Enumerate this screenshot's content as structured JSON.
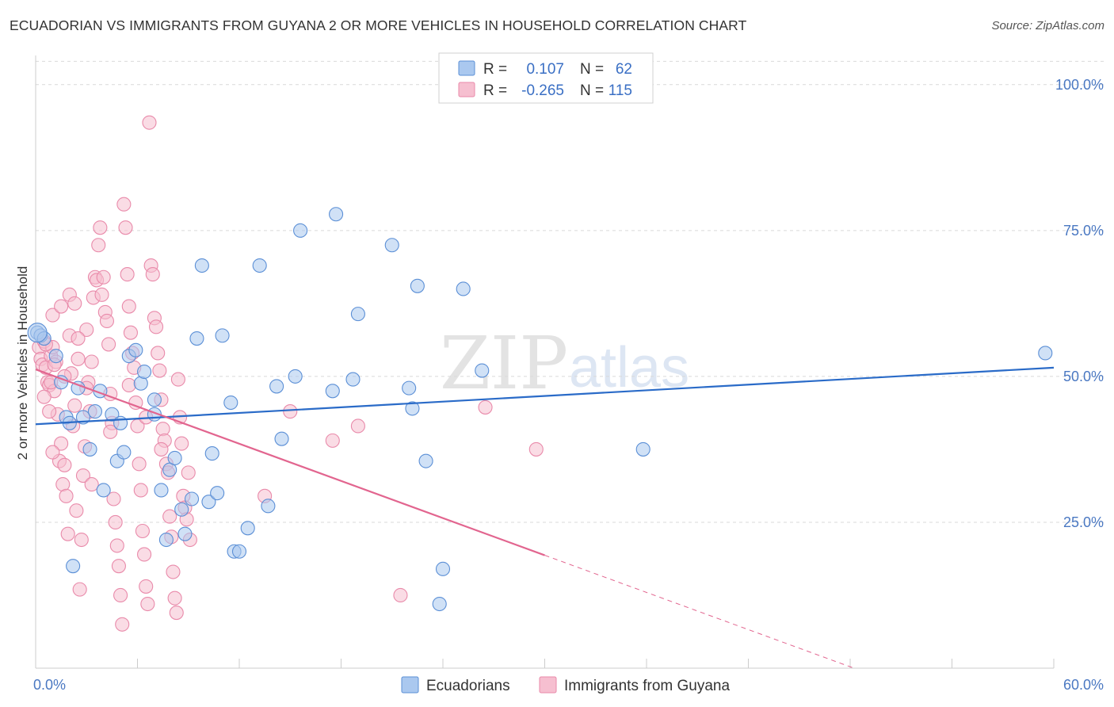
{
  "title": "ECUADORIAN VS IMMIGRANTS FROM GUYANA 2 OR MORE VEHICLES IN HOUSEHOLD CORRELATION CHART",
  "source": "Source: ZipAtlas.com",
  "watermark": {
    "zip": "ZIP",
    "atlas": "atlas"
  },
  "colors": {
    "blue_fill": "#aac8ef",
    "blue_stroke": "#5b8fd6",
    "blue_line": "#2a6bc8",
    "pink_fill": "#f6bfd0",
    "pink_stroke": "#e98aaa",
    "pink_line": "#e2658f",
    "grid": "#d9d9d9",
    "tick_text": "#4a78c2"
  },
  "legend": {
    "rows": [
      {
        "r_label": "R =",
        "r_value": "0.107",
        "n_label": "N =",
        "n_value": "62"
      },
      {
        "r_label": "R =",
        "r_value": "-0.265",
        "n_label": "N =",
        "n_value": "115"
      }
    ]
  },
  "chart_data": {
    "type": "scatter",
    "title": "ECUADORIAN VS IMMIGRANTS FROM GUYANA 2 OR MORE VEHICLES IN HOUSEHOLD CORRELATION CHART",
    "xlabel": "",
    "ylabel": "2 or more Vehicles in Household",
    "xlim": [
      0,
      60
    ],
    "ylim": [
      0,
      105
    ],
    "x_tick_labels": [
      "0.0%",
      "60.0%"
    ],
    "y_ticks": [
      25,
      50,
      75,
      100
    ],
    "y_tick_labels": [
      "25.0%",
      "50.0%",
      "75.0%",
      "100.0%"
    ],
    "grid": true,
    "legend_position": "top-center",
    "series": [
      {
        "name": "Ecuadorians",
        "color": "#aac8ef",
        "trend": {
          "x": [
            0,
            60
          ],
          "y": [
            41.8,
            51.5
          ],
          "dashed_from": null
        },
        "points": [
          [
            0.1,
            57.5
          ],
          [
            0.3,
            57.0
          ],
          [
            0.5,
            56.5
          ],
          [
            1.2,
            53.5
          ],
          [
            1.5,
            49.0
          ],
          [
            1.8,
            43.0
          ],
          [
            2.0,
            42.0
          ],
          [
            2.2,
            17.5
          ],
          [
            2.5,
            48.0
          ],
          [
            2.8,
            43.0
          ],
          [
            3.2,
            37.5
          ],
          [
            3.5,
            44.0
          ],
          [
            3.8,
            47.5
          ],
          [
            4.0,
            30.5
          ],
          [
            4.5,
            43.5
          ],
          [
            4.8,
            35.5
          ],
          [
            5.0,
            42.0
          ],
          [
            5.2,
            37.0
          ],
          [
            5.5,
            53.5
          ],
          [
            5.9,
            54.5
          ],
          [
            6.2,
            48.8
          ],
          [
            6.4,
            50.8
          ],
          [
            7.0,
            46.0
          ],
          [
            7.0,
            43.5
          ],
          [
            7.4,
            30.5
          ],
          [
            7.7,
            22.0
          ],
          [
            7.9,
            34.0
          ],
          [
            8.2,
            36.0
          ],
          [
            8.6,
            27.2
          ],
          [
            8.8,
            23.0
          ],
          [
            9.2,
            29.0
          ],
          [
            9.5,
            56.5
          ],
          [
            9.8,
            69.0
          ],
          [
            10.2,
            28.5
          ],
          [
            10.4,
            36.8
          ],
          [
            10.7,
            30.0
          ],
          [
            11.0,
            57.0
          ],
          [
            11.5,
            45.5
          ],
          [
            11.7,
            20.0
          ],
          [
            12.0,
            20.0
          ],
          [
            12.5,
            24.0
          ],
          [
            13.2,
            69.0
          ],
          [
            13.7,
            27.8
          ],
          [
            14.2,
            48.3
          ],
          [
            14.5,
            39.3
          ],
          [
            15.3,
            50.0
          ],
          [
            15.6,
            75.0
          ],
          [
            17.5,
            47.5
          ],
          [
            17.7,
            77.8
          ],
          [
            18.7,
            49.5
          ],
          [
            19.0,
            60.7
          ],
          [
            21.0,
            72.5
          ],
          [
            22.0,
            48.0
          ],
          [
            22.2,
            44.5
          ],
          [
            22.5,
            65.5
          ],
          [
            23.0,
            35.5
          ],
          [
            24.0,
            17.0
          ],
          [
            23.8,
            11.0
          ],
          [
            25.2,
            65.0
          ],
          [
            26.3,
            51.0
          ],
          [
            35.8,
            37.5
          ],
          [
            59.5,
            54.0
          ]
        ]
      },
      {
        "name": "Immigrants from Guyana",
        "color": "#f6bfd0",
        "trend": {
          "x": [
            0,
            60
          ],
          "y": [
            51.2,
            -12.5
          ],
          "dashed_from": 30.0
        },
        "points": [
          [
            0.2,
            55.0
          ],
          [
            0.3,
            53.0
          ],
          [
            0.4,
            52.0
          ],
          [
            0.5,
            56.0
          ],
          [
            0.6,
            51.5
          ],
          [
            0.7,
            49.0
          ],
          [
            0.8,
            48.5
          ],
          [
            0.9,
            53.5
          ],
          [
            1.0,
            55.0
          ],
          [
            1.1,
            47.5
          ],
          [
            1.2,
            52.5
          ],
          [
            1.3,
            43.5
          ],
          [
            1.4,
            35.5
          ],
          [
            1.5,
            38.5
          ],
          [
            1.6,
            31.5
          ],
          [
            1.7,
            34.8
          ],
          [
            1.8,
            29.5
          ],
          [
            1.9,
            23.0
          ],
          [
            2.0,
            57.0
          ],
          [
            2.1,
            50.5
          ],
          [
            2.2,
            41.5
          ],
          [
            2.3,
            45.0
          ],
          [
            2.4,
            27.0
          ],
          [
            2.5,
            53.0
          ],
          [
            2.6,
            13.5
          ],
          [
            2.7,
            22.0
          ],
          [
            2.8,
            33.0
          ],
          [
            2.9,
            38.0
          ],
          [
            3.0,
            58.0
          ],
          [
            3.1,
            49.0
          ],
          [
            3.2,
            44.0
          ],
          [
            3.3,
            31.5
          ],
          [
            3.4,
            63.5
          ],
          [
            3.5,
            67.0
          ],
          [
            3.6,
            66.5
          ],
          [
            3.7,
            72.5
          ],
          [
            3.8,
            75.5
          ],
          [
            3.9,
            64.0
          ],
          [
            4.0,
            67.0
          ],
          [
            4.1,
            61.0
          ],
          [
            4.2,
            59.5
          ],
          [
            4.3,
            55.5
          ],
          [
            4.4,
            47.0
          ],
          [
            4.5,
            42.0
          ],
          [
            4.6,
            29.0
          ],
          [
            4.7,
            25.0
          ],
          [
            4.8,
            21.0
          ],
          [
            4.9,
            17.5
          ],
          [
            5.0,
            12.5
          ],
          [
            5.1,
            7.5
          ],
          [
            5.2,
            79.5
          ],
          [
            5.3,
            75.5
          ],
          [
            5.4,
            67.5
          ],
          [
            5.5,
            62.0
          ],
          [
            5.6,
            57.5
          ],
          [
            5.7,
            54.0
          ],
          [
            5.8,
            51.5
          ],
          [
            5.9,
            45.5
          ],
          [
            6.0,
            41.5
          ],
          [
            6.1,
            35.0
          ],
          [
            6.2,
            30.5
          ],
          [
            6.3,
            23.5
          ],
          [
            6.4,
            19.5
          ],
          [
            6.5,
            14.0
          ],
          [
            6.6,
            11.0
          ],
          [
            6.7,
            93.5
          ],
          [
            6.8,
            69.0
          ],
          [
            6.9,
            67.5
          ],
          [
            7.0,
            60.0
          ],
          [
            7.1,
            58.5
          ],
          [
            7.2,
            54.0
          ],
          [
            7.3,
            51.0
          ],
          [
            7.4,
            46.0
          ],
          [
            7.5,
            41.0
          ],
          [
            7.6,
            39.0
          ],
          [
            7.7,
            35.0
          ],
          [
            7.8,
            33.5
          ],
          [
            7.9,
            26.0
          ],
          [
            8.0,
            22.5
          ],
          [
            8.1,
            16.5
          ],
          [
            8.2,
            12.0
          ],
          [
            8.3,
            9.5
          ],
          [
            8.4,
            49.5
          ],
          [
            8.5,
            43.0
          ],
          [
            8.6,
            38.5
          ],
          [
            8.7,
            29.5
          ],
          [
            8.8,
            27.5
          ],
          [
            8.9,
            25.5
          ],
          [
            9.0,
            33.5
          ],
          [
            9.1,
            22.0
          ],
          [
            1.0,
            60.5
          ],
          [
            0.8,
            44.0
          ],
          [
            1.5,
            62.0
          ],
          [
            2.0,
            64.0
          ],
          [
            2.5,
            56.5
          ],
          [
            3.0,
            48.0
          ],
          [
            13.5,
            29.5
          ],
          [
            15.0,
            44.0
          ],
          [
            17.5,
            39.0
          ],
          [
            19.0,
            41.5
          ],
          [
            21.5,
            12.5
          ],
          [
            26.5,
            44.7
          ],
          [
            29.5,
            37.5
          ],
          [
            1.0,
            37.0
          ],
          [
            0.5,
            46.5
          ],
          [
            0.6,
            55.5
          ],
          [
            0.9,
            49.0
          ],
          [
            1.1,
            52.0
          ],
          [
            1.7,
            50.0
          ],
          [
            2.3,
            62.5
          ],
          [
            3.3,
            52.5
          ],
          [
            4.4,
            40.5
          ],
          [
            5.5,
            48.5
          ],
          [
            6.5,
            43.0
          ],
          [
            7.4,
            37.5
          ]
        ]
      }
    ]
  },
  "bottom_legend": [
    "Ecuadorians",
    "Immigrants from Guyana"
  ]
}
